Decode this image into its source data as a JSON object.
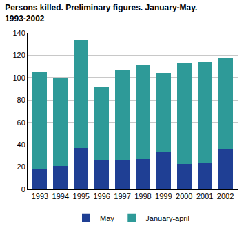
{
  "chart_data": {
    "type": "bar",
    "stacked": true,
    "title": [
      "Persons killed. Preliminary figures. January-May.",
      "1993-2002"
    ],
    "categories": [
      "1993",
      "1994",
      "1995",
      "1996",
      "1997",
      "1998",
      "1999",
      "2000",
      "2001",
      "2002"
    ],
    "series": [
      {
        "name": "May",
        "color": "#1f3f94",
        "values": [
          18,
          21,
          37,
          26,
          26,
          27,
          33,
          23,
          24,
          36
        ]
      },
      {
        "name": "January-april",
        "color": "#2e9a98",
        "values": [
          87,
          78,
          97,
          66,
          81,
          84,
          71,
          90,
          90,
          82
        ]
      }
    ],
    "ylim": [
      0,
      140
    ],
    "yticks": [
      0,
      20,
      40,
      60,
      80,
      100,
      120,
      140
    ],
    "grid": true,
    "legend": "bottom"
  }
}
